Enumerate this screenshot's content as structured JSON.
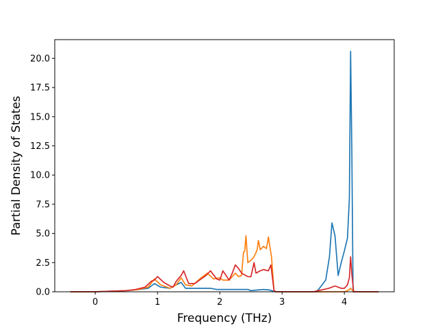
{
  "chart_data": {
    "type": "line",
    "title": "",
    "xlabel": "Frequency (THz)",
    "ylabel": "Partial Density of States",
    "xlim": [
      -0.65,
      4.8
    ],
    "ylim": [
      0,
      21.6
    ],
    "xticks": [
      0,
      1,
      2,
      3,
      4
    ],
    "xtick_labels": [
      "0",
      "1",
      "2",
      "3",
      "4"
    ],
    "yticks": [
      0,
      2.5,
      5,
      7.5,
      10,
      12.5,
      15,
      17.5,
      20
    ],
    "ytick_labels": [
      "0.0",
      "2.5",
      "5.0",
      "7.5",
      "10.0",
      "12.5",
      "15.0",
      "17.5",
      "20.0"
    ],
    "grid": false,
    "legend": "none",
    "series": [
      {
        "color": "#1f77b4",
        "x": [
          -0.4,
          0.0,
          0.5,
          0.7,
          0.85,
          0.95,
          1.05,
          1.2,
          1.3,
          1.38,
          1.45,
          1.55,
          1.7,
          1.85,
          1.95,
          2.05,
          2.15,
          2.3,
          2.45,
          2.5,
          2.6,
          2.7,
          2.8,
          2.86,
          2.9,
          3.0,
          3.4,
          3.55,
          3.6,
          3.7,
          3.76,
          3.8,
          3.85,
          3.9,
          3.95,
          4.0,
          4.05,
          4.08,
          4.1,
          4.12,
          4.14,
          4.2,
          4.55
        ],
        "y": [
          0,
          0,
          0.1,
          0.2,
          0.3,
          0.7,
          0.4,
          0.3,
          0.6,
          0.8,
          0.3,
          0.3,
          0.3,
          0.3,
          0.2,
          0.2,
          0.2,
          0.2,
          0.2,
          0.1,
          0.15,
          0.2,
          0.15,
          0.05,
          0,
          0,
          0,
          0,
          0.3,
          1.0,
          3.0,
          5.9,
          4.8,
          1.4,
          2.5,
          3.5,
          4.6,
          8.0,
          20.6,
          12.0,
          0,
          0,
          0
        ]
      },
      {
        "color": "#ff7f0e",
        "x": [
          -0.4,
          0.0,
          0.5,
          0.7,
          0.85,
          0.95,
          1.05,
          1.2,
          1.3,
          1.38,
          1.45,
          1.55,
          1.7,
          1.8,
          1.9,
          2.0,
          2.05,
          2.15,
          2.25,
          2.3,
          2.35,
          2.38,
          2.4,
          2.42,
          2.45,
          2.5,
          2.55,
          2.6,
          2.62,
          2.65,
          2.7,
          2.75,
          2.78,
          2.8,
          2.83,
          2.87,
          2.9,
          3.0,
          3.5,
          4.0,
          4.05,
          4.08,
          4.1,
          4.15,
          4.55
        ],
        "y": [
          0,
          0,
          0.1,
          0.2,
          0.4,
          1.1,
          0.6,
          0.3,
          0.6,
          1.2,
          0.6,
          0.5,
          1.2,
          1.6,
          1.1,
          1.2,
          1.0,
          1.0,
          1.6,
          1.3,
          1.4,
          3.4,
          3.5,
          4.8,
          2.5,
          2.7,
          3.0,
          3.6,
          4.4,
          3.6,
          3.9,
          3.7,
          4.7,
          4.0,
          3.0,
          0.1,
          0,
          0,
          0,
          0,
          0.1,
          0.2,
          0.3,
          0,
          0
        ]
      },
      {
        "color": "#d62728",
        "x": [
          -0.4,
          0.0,
          0.5,
          0.65,
          0.8,
          0.9,
          0.95,
          1.0,
          1.1,
          1.2,
          1.25,
          1.3,
          1.38,
          1.42,
          1.5,
          1.6,
          1.7,
          1.78,
          1.85,
          1.95,
          2.0,
          2.05,
          2.15,
          2.2,
          2.25,
          2.3,
          2.35,
          2.45,
          2.5,
          2.55,
          2.58,
          2.65,
          2.7,
          2.78,
          2.82,
          2.87,
          2.9,
          3.0,
          3.5,
          3.75,
          3.8,
          3.85,
          3.9,
          3.95,
          4.0,
          4.05,
          4.08,
          4.1,
          4.12,
          4.15,
          4.55
        ],
        "y": [
          0,
          0,
          0.1,
          0.2,
          0.4,
          0.9,
          1.0,
          1.3,
          0.8,
          0.5,
          0.4,
          0.9,
          1.4,
          1.8,
          0.7,
          0.7,
          1.1,
          1.4,
          1.8,
          1.1,
          1.0,
          1.8,
          1.0,
          1.6,
          2.3,
          2.0,
          1.6,
          1.3,
          1.3,
          2.5,
          1.6,
          1.8,
          1.9,
          1.8,
          2.3,
          0.1,
          0,
          0,
          0,
          0.3,
          0.4,
          0.5,
          0.4,
          0.3,
          0.3,
          0.6,
          1.2,
          3.0,
          1.5,
          0,
          0
        ]
      }
    ]
  }
}
